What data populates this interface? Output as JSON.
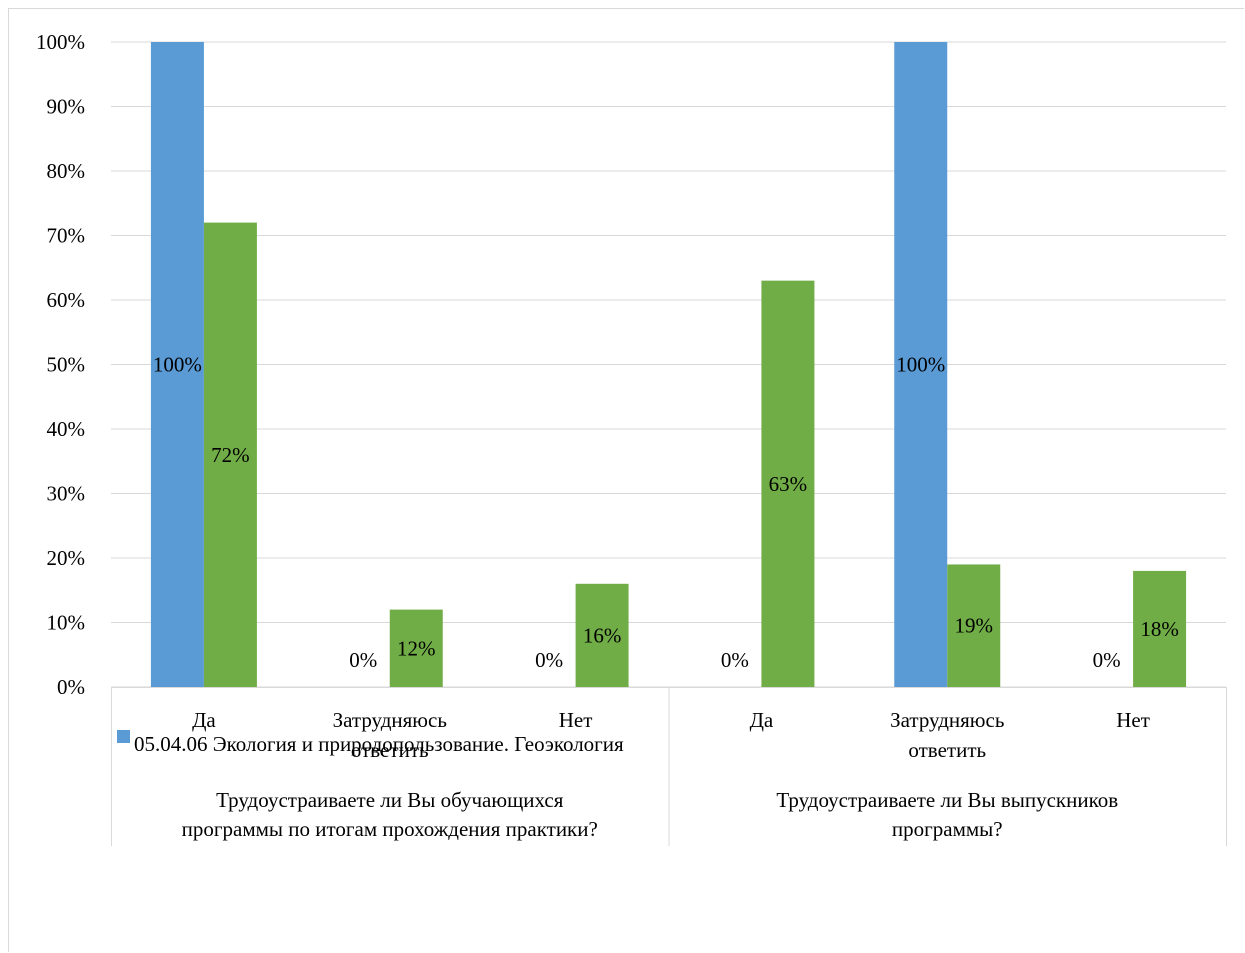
{
  "chart_data": {
    "type": "bar",
    "groups": [
      {
        "label": "Трудоустраиваете ли Вы обучающихся программы по итогам прохождения практики?",
        "categories": [
          "Да",
          "Затрудняюсь ответить",
          "Нет"
        ]
      },
      {
        "label": "Трудоустраиваете ли Вы выпускников программы?",
        "categories": [
          "Да",
          "Затрудняюсь ответить",
          "Нет"
        ]
      }
    ],
    "series": [
      {
        "name": "05.04.06 Экология и природопользование. Геоэкология",
        "color": "#5b9bd5",
        "values": [
          1.0,
          0.0,
          0.0,
          0.0,
          1.0,
          0.0
        ],
        "labels": [
          "100%",
          "0%",
          "0%",
          "0%",
          "100%",
          "0%"
        ]
      },
      {
        "color": "#70ad47",
        "values": [
          0.72,
          0.12,
          0.16,
          0.63,
          0.19,
          0.18
        ],
        "labels": [
          "72%",
          "12%",
          "16%",
          "63%",
          "19%",
          "18%"
        ]
      }
    ],
    "ylim": [
      0,
      1
    ],
    "yticks": [
      "0%",
      "10%",
      "20%",
      "30%",
      "40%",
      "50%",
      "60%",
      "70%",
      "80%",
      "90%",
      "100%"
    ],
    "grid": true,
    "legend": "bottom-left"
  }
}
